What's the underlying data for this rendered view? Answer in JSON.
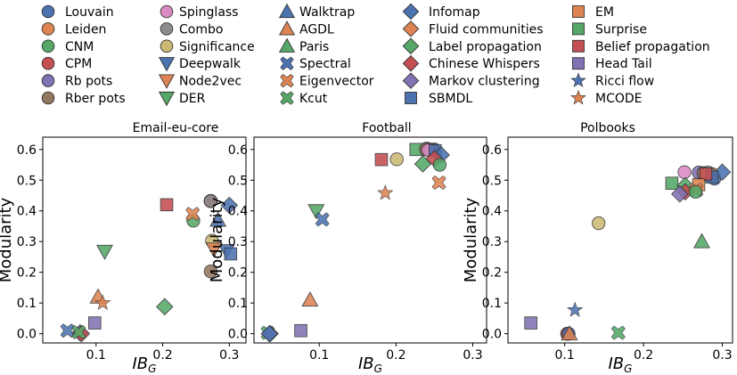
{
  "legend": [
    {
      "name": "Louvain",
      "color": "#4c72b0",
      "marker": "circle"
    },
    {
      "name": "Leiden",
      "color": "#dd8452",
      "marker": "circle"
    },
    {
      "name": "CNM",
      "color": "#55a868",
      "marker": "circle"
    },
    {
      "name": "CPM",
      "color": "#c44e52",
      "marker": "circle"
    },
    {
      "name": "Rb pots",
      "color": "#8172b3",
      "marker": "circle"
    },
    {
      "name": "Rber pots",
      "color": "#937860",
      "marker": "circle"
    },
    {
      "name": "Spinglass",
      "color": "#da8bc3",
      "marker": "circle"
    },
    {
      "name": "Combo",
      "color": "#8c8c8c",
      "marker": "circle"
    },
    {
      "name": "Significance",
      "color": "#ccb974",
      "marker": "circle"
    },
    {
      "name": "Deepwalk",
      "color": "#4c72b0",
      "marker": "triangle-down"
    },
    {
      "name": "Node2vec",
      "color": "#dd8452",
      "marker": "triangle-down"
    },
    {
      "name": "DER",
      "color": "#55a868",
      "marker": "triangle-down"
    },
    {
      "name": "Walktrap",
      "color": "#4c72b0",
      "marker": "triangle-up"
    },
    {
      "name": "AGDL",
      "color": "#dd8452",
      "marker": "triangle-up"
    },
    {
      "name": "Paris",
      "color": "#55a868",
      "marker": "triangle-up"
    },
    {
      "name": "Spectral",
      "color": "#4c72b0",
      "marker": "x"
    },
    {
      "name": "Eigenvector",
      "color": "#dd8452",
      "marker": "x"
    },
    {
      "name": "Kcut",
      "color": "#55a868",
      "marker": "x"
    },
    {
      "name": "Infomap",
      "color": "#4c72b0",
      "marker": "diamond"
    },
    {
      "name": "Fluid communities",
      "color": "#dd8452",
      "marker": "diamond"
    },
    {
      "name": "Label propagation",
      "color": "#55a868",
      "marker": "diamond"
    },
    {
      "name": "Chinese Whispers",
      "color": "#c44e52",
      "marker": "diamond"
    },
    {
      "name": "Markov clustering",
      "color": "#8172b3",
      "marker": "diamond"
    },
    {
      "name": "SBMDL",
      "color": "#4c72b0",
      "marker": "square"
    },
    {
      "name": "EM",
      "color": "#dd8452",
      "marker": "square"
    },
    {
      "name": "Surprise",
      "color": "#55a868",
      "marker": "square"
    },
    {
      "name": "Belief propagation",
      "color": "#c44e52",
      "marker": "square"
    },
    {
      "name": "Head Tail",
      "color": "#8172b3",
      "marker": "square"
    },
    {
      "name": "Ricci flow",
      "color": "#4c72b0",
      "marker": "star"
    },
    {
      "name": "MCODE",
      "color": "#dd8452",
      "marker": "star"
    }
  ],
  "chart_data": [
    {
      "type": "scatter",
      "title": "Email-eu-core",
      "xlabel": "IB",
      "xlabel_sub": "G",
      "ylabel": "Modularity",
      "xlim": [
        0.02,
        0.325
      ],
      "ylim": [
        -0.03,
        0.64
      ],
      "xticks": [
        0.1,
        0.2,
        0.3
      ],
      "xtick_labels": [
        "0.1",
        "0.2",
        "0.3"
      ],
      "yticks": [
        0.0,
        0.1,
        0.2,
        0.3,
        0.4,
        0.5,
        0.6
      ],
      "ytick_labels": [
        "0.0",
        "0.1",
        "0.2",
        "0.3",
        "0.4",
        "0.5",
        "0.6"
      ],
      "points": [
        {
          "method": "Louvain",
          "x": 0.272,
          "y": 0.432
        },
        {
          "method": "Leiden",
          "x": 0.272,
          "y": 0.432
        },
        {
          "method": "CPM",
          "x": 0.272,
          "y": 0.432
        },
        {
          "method": "Combo",
          "x": 0.272,
          "y": 0.432
        },
        {
          "method": "Rber pots",
          "x": 0.272,
          "y": 0.203
        },
        {
          "method": "Significance",
          "x": 0.274,
          "y": 0.303
        },
        {
          "method": "CNM",
          "x": 0.246,
          "y": 0.368
        },
        {
          "method": "Eigenvector",
          "x": 0.245,
          "y": 0.39
        },
        {
          "method": "Belief propagation",
          "x": 0.206,
          "y": 0.42
        },
        {
          "method": "Walktrap",
          "x": 0.283,
          "y": 0.37
        },
        {
          "method": "Infomap",
          "x": 0.3,
          "y": 0.418
        },
        {
          "method": "Deepwalk",
          "x": 0.296,
          "y": 0.27
        },
        {
          "method": "SBMDL",
          "x": 0.302,
          "y": 0.26
        },
        {
          "method": "Node2vec",
          "x": 0.277,
          "y": 0.275
        },
        {
          "method": "DER",
          "x": 0.113,
          "y": 0.268
        },
        {
          "method": "Label propagation",
          "x": 0.203,
          "y": 0.088
        },
        {
          "method": "AGDL",
          "x": 0.103,
          "y": 0.12
        },
        {
          "method": "MCODE",
          "x": 0.11,
          "y": 0.1
        },
        {
          "method": "Head Tail",
          "x": 0.098,
          "y": 0.035
        },
        {
          "method": "Spectral",
          "x": 0.057,
          "y": 0.01
        },
        {
          "method": "Markov clustering",
          "x": 0.076,
          "y": 0.003
        },
        {
          "method": "Chinese Whispers",
          "x": 0.078,
          "y": 0.0
        },
        {
          "method": "Kcut",
          "x": 0.074,
          "y": 0.005
        }
      ]
    },
    {
      "type": "scatter",
      "title": "Football",
      "xlabel": "IB",
      "xlabel_sub": "G",
      "ylabel": "Modularity",
      "xlim": [
        0.015,
        0.318
      ],
      "ylim": [
        -0.03,
        0.64
      ],
      "xticks": [
        0.1,
        0.2,
        0.3
      ],
      "xtick_labels": [
        "0.1",
        "0.2",
        "0.3"
      ],
      "yticks": [
        0.0,
        0.1,
        0.2,
        0.3,
        0.4,
        0.5,
        0.6
      ],
      "ytick_labels": [
        "0.0",
        "0.1",
        "0.2",
        "0.3",
        "0.4",
        "0.5",
        "0.6"
      ],
      "points": [
        {
          "method": "Surprise",
          "x": 0.226,
          "y": 0.6
        },
        {
          "method": "Louvain",
          "x": 0.25,
          "y": 0.6
        },
        {
          "method": "Leiden",
          "x": 0.24,
          "y": 0.603
        },
        {
          "method": "CPM",
          "x": 0.248,
          "y": 0.598
        },
        {
          "method": "Rber pots",
          "x": 0.239,
          "y": 0.6
        },
        {
          "method": "Combo",
          "x": 0.245,
          "y": 0.6
        },
        {
          "method": "Spinglass",
          "x": 0.242,
          "y": 0.598
        },
        {
          "method": "SBMDL",
          "x": 0.251,
          "y": 0.596
        },
        {
          "method": "Infomap",
          "x": 0.259,
          "y": 0.582
        },
        {
          "method": "Chinese Whispers",
          "x": 0.25,
          "y": 0.57
        },
        {
          "method": "Label propagation",
          "x": 0.235,
          "y": 0.553
        },
        {
          "method": "CNM",
          "x": 0.257,
          "y": 0.55
        },
        {
          "method": "Significance",
          "x": 0.201,
          "y": 0.568
        },
        {
          "method": "Belief propagation",
          "x": 0.181,
          "y": 0.567
        },
        {
          "method": "Eigenvector",
          "x": 0.256,
          "y": 0.492
        },
        {
          "method": "MCODE",
          "x": 0.186,
          "y": 0.458
        },
        {
          "method": "DER",
          "x": 0.096,
          "y": 0.4
        },
        {
          "method": "Spectral",
          "x": 0.104,
          "y": 0.372
        },
        {
          "method": "AGDL",
          "x": 0.088,
          "y": 0.11
        },
        {
          "method": "Head Tail",
          "x": 0.076,
          "y": 0.01
        },
        {
          "method": "Kcut",
          "x": 0.033,
          "y": 0.003
        },
        {
          "method": "Markov clustering",
          "x": 0.036,
          "y": 0.0
        },
        {
          "method": "Infomap",
          "x": 0.035,
          "y": 0.0
        }
      ]
    },
    {
      "type": "scatter",
      "title": "Polbooks",
      "xlabel": "IB",
      "xlabel_sub": "G",
      "ylabel": "Modularity",
      "xlim": [
        0.028,
        0.313
      ],
      "ylim": [
        -0.03,
        0.64
      ],
      "xticks": [
        0.1,
        0.2,
        0.3
      ],
      "xtick_labels": [
        "0.1",
        "0.2",
        "0.3"
      ],
      "yticks": [
        0.0,
        0.1,
        0.2,
        0.3,
        0.4,
        0.5,
        0.6
      ],
      "ytick_labels": [
        "0.0",
        "0.1",
        "0.2",
        "0.3",
        "0.4",
        "0.5",
        "0.6"
      ],
      "points": [
        {
          "method": "Spinglass",
          "x": 0.252,
          "y": 0.526
        },
        {
          "method": "Louvain",
          "x": 0.29,
          "y": 0.505
        },
        {
          "method": "Leiden",
          "x": 0.287,
          "y": 0.52
        },
        {
          "method": "CPM",
          "x": 0.283,
          "y": 0.515
        },
        {
          "method": "Rb pots",
          "x": 0.27,
          "y": 0.525
        },
        {
          "method": "Rber pots",
          "x": 0.276,
          "y": 0.523
        },
        {
          "method": "Combo",
          "x": 0.282,
          "y": 0.525
        },
        {
          "method": "Significance",
          "x": 0.28,
          "y": 0.52
        },
        {
          "method": "Infomap",
          "x": 0.3,
          "y": 0.526
        },
        {
          "method": "SBMDL",
          "x": 0.287,
          "y": 0.51
        },
        {
          "method": "Belief propagation",
          "x": 0.279,
          "y": 0.52
        },
        {
          "method": "Surprise",
          "x": 0.236,
          "y": 0.49
        },
        {
          "method": "Label propagation",
          "x": 0.253,
          "y": 0.482
        },
        {
          "method": "EM",
          "x": 0.27,
          "y": 0.485
        },
        {
          "method": "Eigenvector",
          "x": 0.267,
          "y": 0.468
        },
        {
          "method": "Chinese Whispers",
          "x": 0.253,
          "y": 0.462
        },
        {
          "method": "Markov clustering",
          "x": 0.246,
          "y": 0.455
        },
        {
          "method": "CNM",
          "x": 0.266,
          "y": 0.462
        },
        {
          "method": "Significance",
          "x": 0.143,
          "y": 0.36
        },
        {
          "method": "Paris",
          "x": 0.274,
          "y": 0.3
        },
        {
          "method": "Ricci flow",
          "x": 0.113,
          "y": 0.077
        },
        {
          "method": "Head Tail",
          "x": 0.057,
          "y": 0.035
        },
        {
          "method": "Leiden",
          "x": 0.104,
          "y": 0.0
        },
        {
          "method": "CPM",
          "x": 0.103,
          "y": 0.0
        },
        {
          "method": "Louvain",
          "x": 0.105,
          "y": 0.0
        },
        {
          "method": "AGDL",
          "x": 0.106,
          "y": 0.0
        },
        {
          "method": "Kcut",
          "x": 0.168,
          "y": 0.003
        }
      ]
    }
  ]
}
